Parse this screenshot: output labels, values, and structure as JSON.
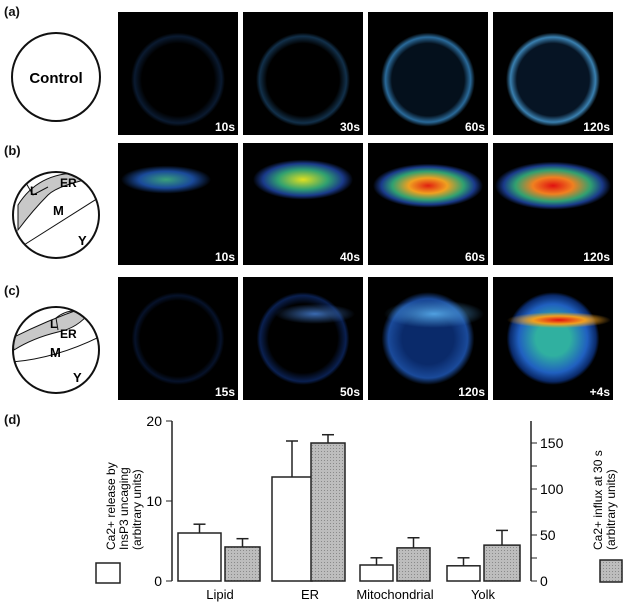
{
  "panels": {
    "a": {
      "label": "(a)",
      "diagram_text": "Control",
      "times": [
        "10s",
        "30s",
        "60s",
        "120s"
      ]
    },
    "b": {
      "label": "(b)",
      "regions": [
        "L",
        "ER",
        "M",
        "Y"
      ],
      "times": [
        "10s",
        "40s",
        "60s",
        "120s"
      ]
    },
    "c": {
      "label": "(c)",
      "regions": [
        "L",
        "ER",
        "M",
        "Y"
      ],
      "times": [
        "15s",
        "50s",
        "120s",
        "+4s"
      ]
    },
    "d": {
      "label": "(d)"
    }
  },
  "chart_data": {
    "type": "bar",
    "categories": [
      "Lipid",
      "ER",
      "Mitochondrial",
      "Yolk"
    ],
    "series": [
      {
        "name": "Ca2+ release by InsP3 uncaging (arbitrary units)",
        "axis": "left",
        "fill": "white",
        "values": [
          6.0,
          13.0,
          2.0,
          1.9
        ],
        "error_upper": [
          7.1,
          17.5,
          2.9,
          2.9
        ]
      },
      {
        "name": "Ca2+ influx at 30 s (arbitrary units)",
        "axis": "right",
        "fill": "gray",
        "values": [
          37,
          150,
          36,
          39
        ],
        "error_upper": [
          46,
          159,
          47,
          55
        ]
      }
    ],
    "left_axis": {
      "ylim": [
        0,
        20
      ],
      "ticks": [
        "0",
        "10",
        "20"
      ],
      "label_line1": "Ca2+ release by",
      "label_line2": "InsP3 uncaging",
      "label_line3": "(arbitrary units)"
    },
    "right_axis": {
      "ylim": [
        0,
        174
      ],
      "ticks": [
        "0",
        "50",
        "100",
        "150"
      ],
      "label_line1": "Ca2+ influx at 30 s",
      "label_line2": "(arbitrary units)"
    },
    "grid": false
  }
}
